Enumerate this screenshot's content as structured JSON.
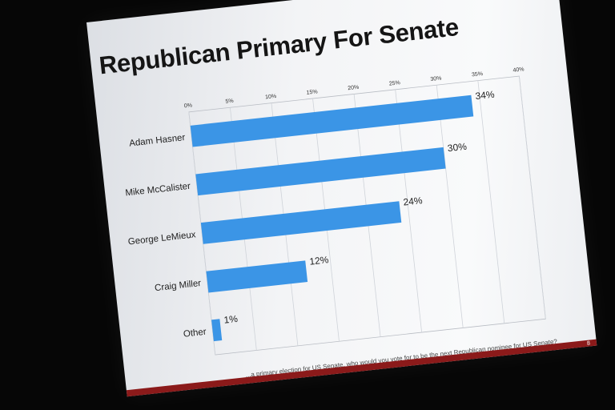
{
  "slide": {
    "title": "Republican Primary For Senate",
    "footnote": "...a primary election for US Senate, who would you vote for to be the next Republican nominee for US Senate?",
    "slide_number": "8"
  },
  "colors": {
    "bar": "#3b95e6",
    "background": "#060606",
    "footer": "#8b1a1a"
  },
  "chart_data": {
    "type": "bar",
    "orientation": "horizontal",
    "title": "Republican Primary For Senate",
    "categories": [
      "Adam Hasner",
      "Mike McCalister",
      "George LeMieux",
      "Craig Miller",
      "Other"
    ],
    "values": [
      34,
      30,
      24,
      12,
      1
    ],
    "data_labels": [
      "34%",
      "30%",
      "24%",
      "12%",
      "1%"
    ],
    "xlim": [
      0,
      40
    ],
    "x_ticks": [
      "0%",
      "5%",
      "10%",
      "15%",
      "20%",
      "25%",
      "30%",
      "35%",
      "40%"
    ],
    "x_axis_position": "top",
    "grid": true,
    "legend": "none"
  }
}
